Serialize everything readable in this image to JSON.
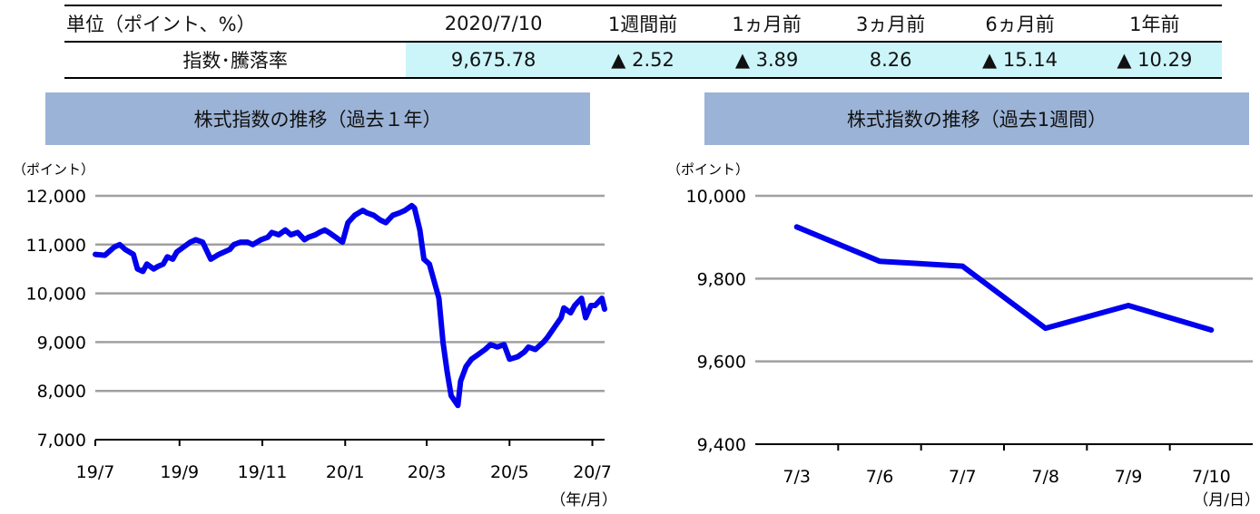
{
  "summary": {
    "headers": [
      "単位（ポイント、%）",
      "2020/7/10",
      "1週間前",
      "1ヵ月前",
      "3ヵ月前",
      "6ヵ月前",
      "1年前"
    ],
    "row_label": "指数･騰落率",
    "values": [
      "9,675.78",
      "▲ 2.52",
      "▲ 3.89",
      "8.26",
      "▲ 15.14",
      "▲ 10.29"
    ]
  },
  "colors": {
    "line": "#0000ee",
    "title_bg": "#9bb3d6",
    "highlight": "#ccf5fa",
    "grid": "#a0a0a0"
  },
  "chart_data": [
    {
      "type": "line",
      "title": "株式指数の推移（過去１年）",
      "unit_label": "（ポイント）",
      "xlabel_unit": "（年/月）",
      "x_ticks": [
        "19/7",
        "19/9",
        "19/11",
        "20/1",
        "20/3",
        "20/5",
        "20/7"
      ],
      "y_ticks": [
        "12,000",
        "11,000",
        "10,000",
        "9,000",
        "8,000",
        "7,000"
      ],
      "ylim": [
        7000,
        12000
      ],
      "grid": true,
      "series": [
        {
          "x": [
            "2019-07-01",
            "2019-07-08",
            "2019-07-15",
            "2019-07-19",
            "2019-07-23",
            "2019-07-29",
            "2019-08-01",
            "2019-08-05",
            "2019-08-08",
            "2019-08-13",
            "2019-08-16",
            "2019-08-20",
            "2019-08-23",
            "2019-08-27",
            "2019-08-30",
            "2019-09-04",
            "2019-09-09",
            "2019-09-13",
            "2019-09-18",
            "2019-09-24",
            "2019-09-30",
            "2019-10-04",
            "2019-10-08",
            "2019-10-11",
            "2019-10-16",
            "2019-10-21",
            "2019-10-25",
            "2019-10-31",
            "2019-11-05",
            "2019-11-08",
            "2019-11-13",
            "2019-11-18",
            "2019-11-22",
            "2019-11-27",
            "2019-12-02",
            "2019-12-05",
            "2019-12-10",
            "2019-12-13",
            "2019-12-17",
            "2019-12-20",
            "2019-12-25",
            "2019-12-30",
            "2020-01-03",
            "2020-01-08",
            "2020-01-14",
            "2020-01-17",
            "2020-01-22",
            "2020-01-27",
            "2020-01-31",
            "2020-02-05",
            "2020-02-10",
            "2020-02-14",
            "2020-02-19",
            "2020-02-21",
            "2020-02-25",
            "2020-02-28",
            "2020-03-03",
            "2020-03-06",
            "2020-03-10",
            "2020-03-13",
            "2020-03-16",
            "2020-03-19",
            "2020-03-24",
            "2020-03-26",
            "2020-03-30",
            "2020-04-03",
            "2020-04-08",
            "2020-04-13",
            "2020-04-17",
            "2020-04-22",
            "2020-04-27",
            "2020-05-01",
            "2020-05-07",
            "2020-05-12",
            "2020-05-15",
            "2020-05-20",
            "2020-05-26",
            "2020-05-29",
            "2020-06-03",
            "2020-06-08",
            "2020-06-10",
            "2020-06-15",
            "2020-06-18",
            "2020-06-23",
            "2020-06-26",
            "2020-06-30",
            "2020-07-03",
            "2020-07-08",
            "2020-07-10"
          ],
          "y": [
            10800,
            10780,
            10950,
            11000,
            10900,
            10800,
            10500,
            10450,
            10600,
            10500,
            10550,
            10600,
            10750,
            10700,
            10850,
            10950,
            11050,
            11100,
            11050,
            10700,
            10800,
            10850,
            10900,
            11000,
            11050,
            11050,
            11000,
            11100,
            11150,
            11250,
            11200,
            11300,
            11200,
            11250,
            11100,
            11150,
            11200,
            11250,
            11300,
            11250,
            11150,
            11050,
            11450,
            11600,
            11700,
            11650,
            11600,
            11500,
            11450,
            11600,
            11650,
            11700,
            11800,
            11750,
            11300,
            10700,
            10600,
            10300,
            9900,
            9000,
            8400,
            7900,
            7700,
            8200,
            8500,
            8650,
            8750,
            8850,
            8950,
            8900,
            8950,
            8650,
            8700,
            8800,
            8900,
            8850,
            9000,
            9100,
            9300,
            9500,
            9700,
            9600,
            9750,
            9900,
            9500,
            9750,
            9750,
            9900,
            9676
          ]
        }
      ]
    },
    {
      "type": "line",
      "title": "株式指数の推移（過去1週間）",
      "unit_label": "（ポイント）",
      "xlabel_unit": "（月/日）",
      "categories": [
        "7/3",
        "7/6",
        "7/7",
        "7/8",
        "7/9",
        "7/10"
      ],
      "y_ticks": [
        "10,000",
        "9,800",
        "9,600",
        "9,400"
      ],
      "ylim": [
        9400,
        10000
      ],
      "grid": true,
      "series": [
        {
          "values": [
            9925,
            9842,
            9830,
            9680,
            9735,
            9676
          ]
        }
      ]
    }
  ]
}
